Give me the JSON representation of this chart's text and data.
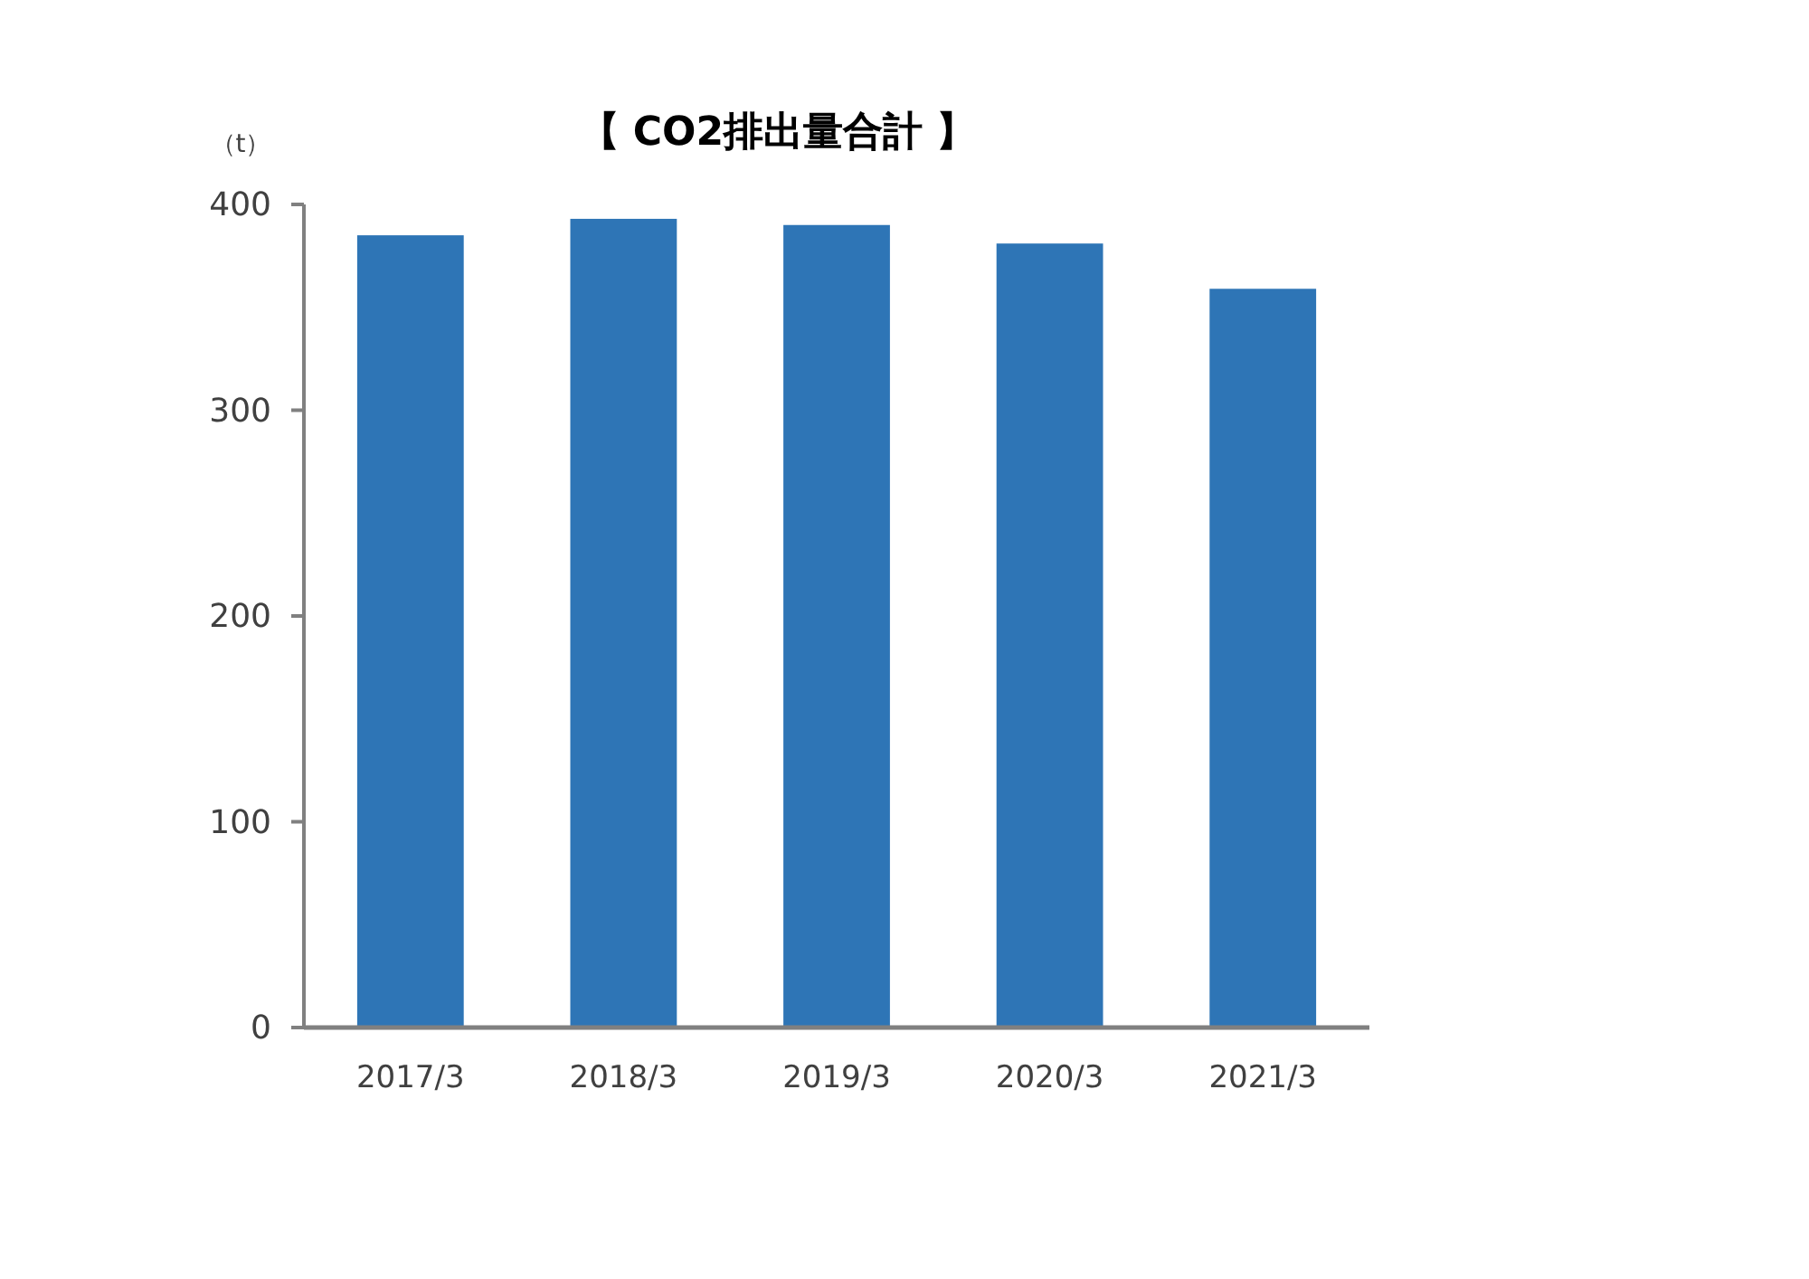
{
  "chart_data": {
    "type": "bar",
    "title": "【 CO2排出量合計 】",
    "ylabel": "（t）",
    "categories": [
      "2017/3",
      "2018/3",
      "2019/3",
      "2020/3",
      "2021/3"
    ],
    "values": [
      385,
      393,
      390,
      381,
      359
    ],
    "color": "#2e75b6",
    "ylim": [
      0,
      400
    ],
    "yticks": [
      0,
      100,
      200,
      300,
      400
    ],
    "grid": false
  }
}
